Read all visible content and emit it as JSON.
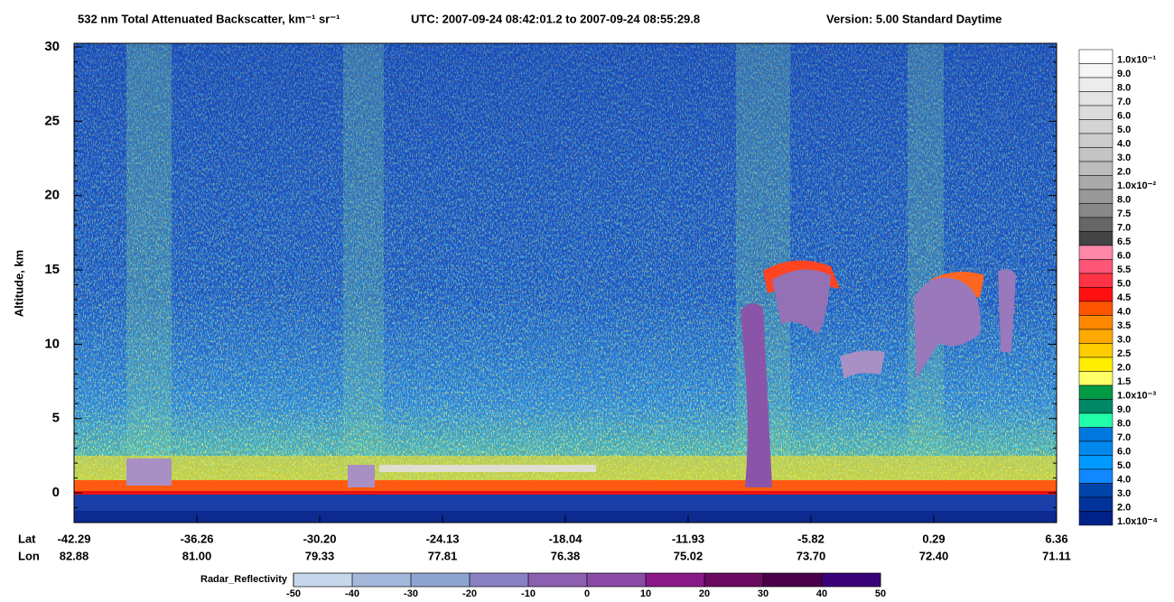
{
  "chart_data": {
    "type": "curtain",
    "title": "532 nm Total Attenuated Backscatter, km⁻¹ sr⁻¹",
    "subtitle": "UTC:  2007-09-24 08:42:01.2  to  2007-09-24 08:55:29.8",
    "version": "Version: 5.00  Standard  Daytime",
    "y_label": "Altitude, km",
    "ylim": [
      -2,
      30
    ],
    "yticks": [
      0,
      5,
      10,
      15,
      20,
      25,
      30
    ],
    "lat_label": "Lat",
    "lon_label": "Lon",
    "lat_ticks": [
      "-42.29",
      "-36.26",
      "-30.20",
      "-24.13",
      "-18.04",
      "-11.93",
      "-5.82",
      "0.29",
      "6.36"
    ],
    "lon_ticks": [
      "82.88",
      "81.00",
      "79.33",
      "77.81",
      "76.38",
      "75.02",
      "73.70",
      "72.40",
      "71.11"
    ],
    "colorbar": {
      "labels": [
        "1.0x10⁻¹",
        "9.0",
        "8.0",
        "7.0",
        "6.0",
        "5.0",
        "4.0",
        "3.0",
        "2.0",
        "1.0x10⁻²",
        "8.0",
        "7.5",
        "7.0",
        "6.5",
        "6.0",
        "5.5",
        "5.0",
        "4.5",
        "4.0",
        "3.5",
        "3.0",
        "2.5",
        "2.0",
        "1.5",
        "1.0x10⁻³",
        "9.0",
        "8.0",
        "7.0",
        "6.0",
        "5.0",
        "4.0",
        "3.0",
        "2.0",
        "1.0x10⁻⁴"
      ],
      "colors": [
        "#ffffff",
        "#f5f5f5",
        "#ececec",
        "#e4e4e4",
        "#dcdcdc",
        "#d4d4d4",
        "#cccccc",
        "#c4c4c4",
        "#bcbcbc",
        "#aaaaaa",
        "#999999",
        "#888888",
        "#666666",
        "#444444",
        "#ff88aa",
        "#ff5577",
        "#ff3344",
        "#ff1010",
        "#ff5500",
        "#ff8800",
        "#ffaa00",
        "#ffcc00",
        "#ffee00",
        "#ffff66",
        "#009944",
        "#008866",
        "#22ffaa",
        "#0077dd",
        "#0088ee",
        "#0099ff",
        "#1188ff",
        "#0044aa",
        "#003399",
        "#002288"
      ]
    },
    "radar_colorbar": {
      "title": "Radar_Reflectivity",
      "lim": [
        -50,
        50
      ],
      "ticks": [
        -50,
        -40,
        -30,
        -20,
        -10,
        0,
        10,
        20,
        30,
        40,
        50
      ],
      "colors": [
        "#c8d8ec",
        "#a4b8dc",
        "#8ea4d0",
        "#8a80c4",
        "#8c60b0",
        "#8a4aa6",
        "#8a1a88",
        "#6a0a60",
        "#4a0048",
        "#3a0078"
      ]
    }
  }
}
